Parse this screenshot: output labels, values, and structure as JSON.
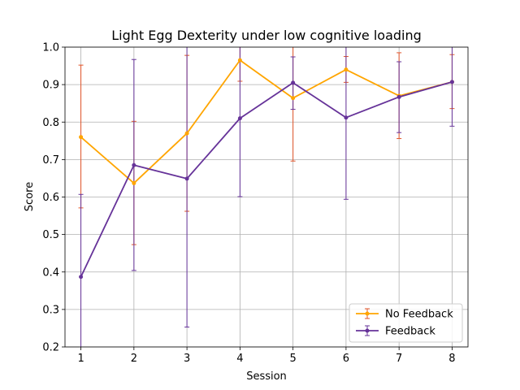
{
  "chart_data": {
    "type": "line",
    "title": "Light Egg Dexterity under low cognitive loading",
    "xlabel": "Session",
    "ylabel": "Score",
    "x": [
      1,
      2,
      3,
      4,
      5,
      6,
      7,
      8
    ],
    "xlim": [
      0.7,
      8.3
    ],
    "ylim": [
      0.2,
      1.0
    ],
    "xticks": [
      "1",
      "2",
      "3",
      "4",
      "5",
      "6",
      "7",
      "8"
    ],
    "yticks": [
      "0.2",
      "0.3",
      "0.4",
      "0.5",
      "0.6",
      "0.7",
      "0.8",
      "0.9",
      "1.0"
    ],
    "grid": true,
    "legend_position": "lower-right",
    "series": [
      {
        "name": "No Feedback",
        "color": "#ffa500",
        "errorbar_color": "#e2552a",
        "values": [
          0.76,
          0.637,
          0.77,
          0.965,
          0.864,
          0.94,
          0.87,
          0.907
        ],
        "err_low": [
          0.571,
          0.473,
          0.562,
          0.909,
          0.696,
          0.906,
          0.756,
          0.836
        ],
        "err_high": [
          0.952,
          0.802,
          0.978,
          1.02,
          1.03,
          0.975,
          0.985,
          0.98
        ]
      },
      {
        "name": "Feedback",
        "color": "#663399",
        "errorbar_color": "#663399",
        "values": [
          0.387,
          0.685,
          0.649,
          0.81,
          0.905,
          0.812,
          0.867,
          0.907
        ],
        "err_low": [
          0.16,
          0.404,
          0.253,
          0.601,
          0.834,
          0.594,
          0.772,
          0.789
        ],
        "err_high": [
          0.607,
          0.967,
          1.04,
          1.02,
          0.974,
          1.03,
          0.961,
          1.02
        ]
      }
    ]
  }
}
